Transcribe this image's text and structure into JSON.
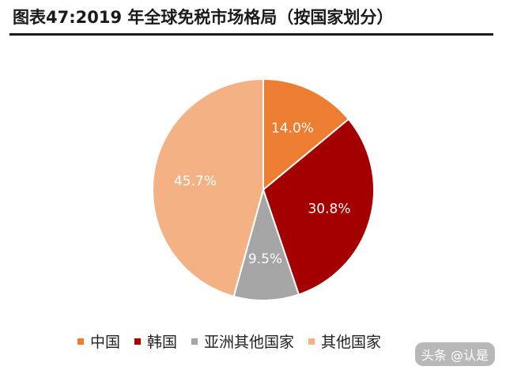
{
  "title": "图表47:2019 年全球免税市场格局（按国家划分）",
  "watermark": "头条 @认是",
  "chart_data": {
    "type": "pie",
    "title": "图表47:2019 年全球免税市场格局（按国家划分）",
    "categories": [
      "中国",
      "韩国",
      "亚洲其他国家",
      "其他国家"
    ],
    "values": [
      14.0,
      30.8,
      9.5,
      45.7
    ],
    "labels": [
      "14.0%",
      "30.8%",
      "9.5%",
      "45.7%"
    ],
    "colors": [
      "#ED7D31",
      "#A50000",
      "#A5A5A5",
      "#F4B183"
    ],
    "label_colors": [
      "#ffffff",
      "#ffffff",
      "#ffffff",
      "#ffffff"
    ],
    "legend_placement": "bottom"
  }
}
